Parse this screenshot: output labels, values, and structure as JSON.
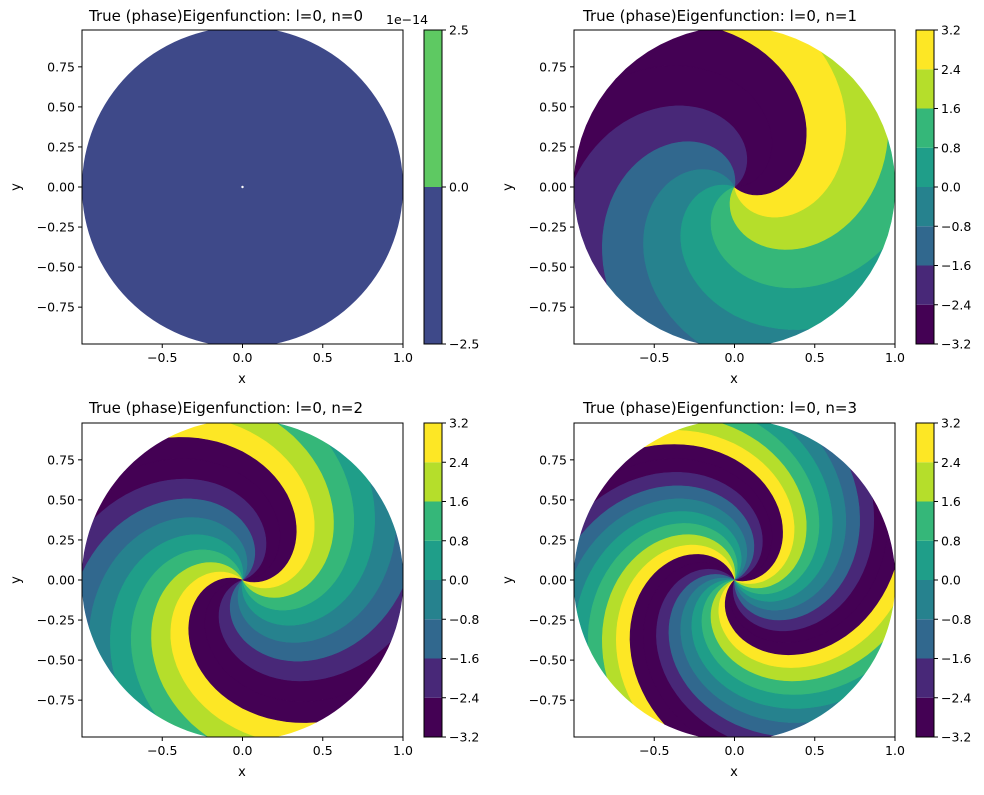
{
  "colors": {
    "viridis": [
      "#440154",
      "#482878",
      "#3e4989",
      "#31688e",
      "#26828e",
      "#1f9e89",
      "#35b779",
      "#6ece58",
      "#b5de2b",
      "#fde725"
    ]
  },
  "chart_data": [
    {
      "type": "heatmap",
      "title": "True (phase)Eigenfunction: l=0, n=0",
      "xlabel": "x",
      "ylabel": "y",
      "xlim": [
        -1.0,
        1.0
      ],
      "ylim": [
        -0.98,
        0.98
      ],
      "xticks": [
        -0.5,
        0.0,
        0.5,
        1.0
      ],
      "xtick_labels": [
        "−0.5",
        "0.0",
        "0.5",
        "1.0"
      ],
      "yticks": [
        -0.75,
        -0.5,
        -0.25,
        0.0,
        0.25,
        0.5,
        0.75
      ],
      "ytick_labels": [
        "−0.75",
        "−0.50",
        "−0.25",
        "0.00",
        "0.25",
        "0.50",
        "0.75"
      ],
      "spiral_arms": 0,
      "colorbar": {
        "levels": [
          -2.5,
          0.0,
          2.5
        ],
        "tick_labels": [
          "−2.5",
          "0.0",
          "2.5"
        ],
        "offset_label": "1e−14",
        "colors": [
          "#3e4989",
          "#5ec962"
        ]
      }
    },
    {
      "type": "heatmap",
      "title": "True (phase)Eigenfunction: l=0, n=1",
      "xlabel": "x",
      "ylabel": "y",
      "xlim": [
        -1.0,
        1.0
      ],
      "ylim": [
        -0.98,
        0.98
      ],
      "xticks": [
        -0.5,
        0.0,
        0.5,
        1.0
      ],
      "xtick_labels": [
        "−0.5",
        "0.0",
        "0.5",
        "1.0"
      ],
      "yticks": [
        -0.75,
        -0.5,
        -0.25,
        0.0,
        0.25,
        0.5,
        0.75
      ],
      "ytick_labels": [
        "−0.75",
        "−0.50",
        "−0.25",
        "0.00",
        "0.25",
        "0.50",
        "0.75"
      ],
      "spiral_arms": 1,
      "colorbar": {
        "levels": [
          -3.2,
          -2.4,
          -1.6,
          -0.8,
          0.0,
          0.8,
          1.6,
          2.4,
          3.2
        ],
        "tick_labels": [
          "−3.2",
          "−2.4",
          "−1.6",
          "−0.8",
          "0.0",
          "0.8",
          "1.6",
          "2.4",
          "3.2"
        ],
        "offset_label": ""
      }
    },
    {
      "type": "heatmap",
      "title": "True (phase)Eigenfunction: l=0, n=2",
      "xlabel": "x",
      "ylabel": "y",
      "xlim": [
        -1.0,
        1.0
      ],
      "ylim": [
        -0.98,
        0.98
      ],
      "xticks": [
        -0.5,
        0.0,
        0.5,
        1.0
      ],
      "xtick_labels": [
        "−0.5",
        "0.0",
        "0.5",
        "1.0"
      ],
      "yticks": [
        -0.75,
        -0.5,
        -0.25,
        0.0,
        0.25,
        0.5,
        0.75
      ],
      "ytick_labels": [
        "−0.75",
        "−0.50",
        "−0.25",
        "0.00",
        "0.25",
        "0.50",
        "0.75"
      ],
      "spiral_arms": 2,
      "colorbar": {
        "levels": [
          -3.2,
          -2.4,
          -1.6,
          -0.8,
          0.0,
          0.8,
          1.6,
          2.4,
          3.2
        ],
        "tick_labels": [
          "−3.2",
          "−2.4",
          "−1.6",
          "−0.8",
          "0.0",
          "0.8",
          "1.6",
          "2.4",
          "3.2"
        ],
        "offset_label": ""
      }
    },
    {
      "type": "heatmap",
      "title": "True (phase)Eigenfunction: l=0, n=3",
      "xlabel": "x",
      "ylabel": "y",
      "xlim": [
        -1.0,
        1.0
      ],
      "ylim": [
        -0.98,
        0.98
      ],
      "xticks": [
        -0.5,
        0.0,
        0.5,
        1.0
      ],
      "xtick_labels": [
        "−0.5",
        "0.0",
        "0.5",
        "1.0"
      ],
      "yticks": [
        -0.75,
        -0.5,
        -0.25,
        0.0,
        0.25,
        0.5,
        0.75
      ],
      "ytick_labels": [
        "−0.75",
        "−0.50",
        "−0.25",
        "0.00",
        "0.25",
        "0.50",
        "0.75"
      ],
      "spiral_arms": 3,
      "colorbar": {
        "levels": [
          -3.2,
          -2.4,
          -1.6,
          -0.8,
          0.0,
          0.8,
          1.6,
          2.4,
          3.2
        ],
        "tick_labels": [
          "−3.2",
          "−2.4",
          "−1.6",
          "−0.8",
          "0.0",
          "0.8",
          "1.6",
          "2.4",
          "3.2"
        ],
        "offset_label": ""
      }
    }
  ]
}
